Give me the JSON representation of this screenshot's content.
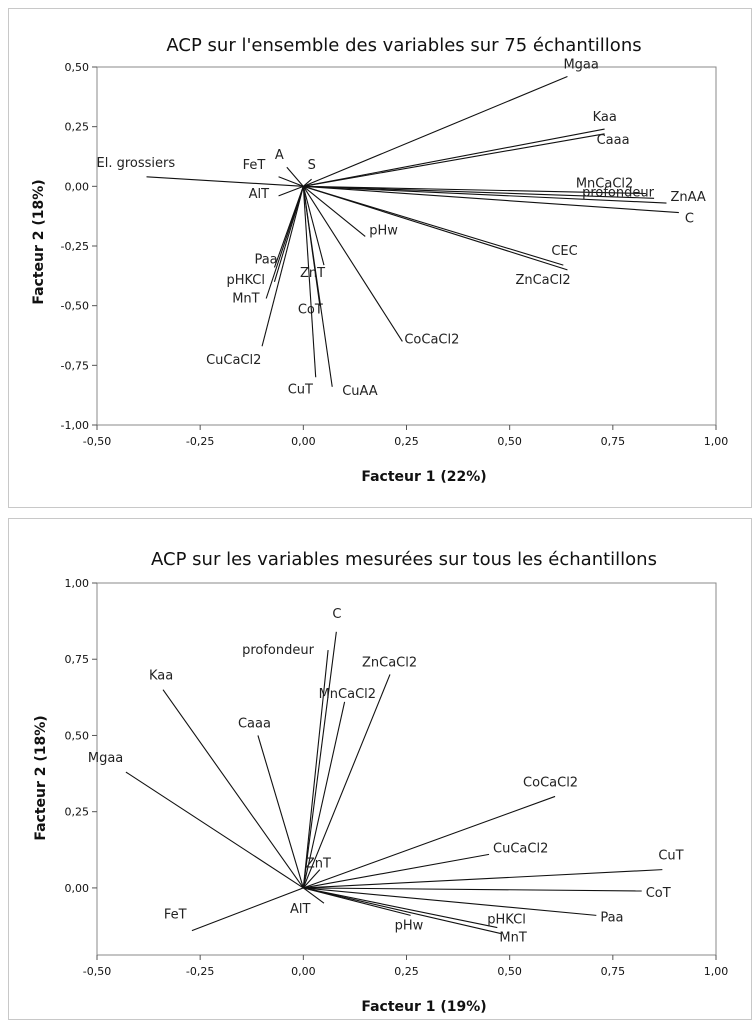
{
  "chart_data": [
    {
      "type": "biplot",
      "title": "ACP sur l'ensemble des variables sur 75 échantillons",
      "xlabel": "Facteur 1 (22%)",
      "ylabel": "Facteur 2 (18%)",
      "xlim": [
        -0.5,
        1.0
      ],
      "ylim": [
        -1.0,
        0.5
      ],
      "xticks": [
        "-0,50",
        "-0,25",
        "0,00",
        "0,25",
        "0,50",
        "0,75",
        "1,00"
      ],
      "yticks": [
        "0,50",
        "0,25",
        "0,00",
        "-0,25",
        "-0,50",
        "-0,75",
        "-1,00"
      ],
      "grid": false,
      "variables": [
        {
          "name": "Mgaa",
          "x": 0.64,
          "y": 0.46
        },
        {
          "name": "Kaa",
          "x": 0.73,
          "y": 0.24
        },
        {
          "name": "Caaa",
          "x": 0.73,
          "y": 0.22
        },
        {
          "name": "MnCaCl2",
          "x": 0.83,
          "y": -0.03
        },
        {
          "name": "profondeur",
          "x": 0.85,
          "y": -0.05
        },
        {
          "name": "ZnAA",
          "x": 0.88,
          "y": -0.07
        },
        {
          "name": "C",
          "x": 0.91,
          "y": -0.11
        },
        {
          "name": "CEC",
          "x": 0.63,
          "y": -0.33
        },
        {
          "name": "ZnCaCl2",
          "x": 0.64,
          "y": -0.35
        },
        {
          "name": "El. grossiers",
          "x": -0.38,
          "y": 0.04
        },
        {
          "name": "FeT",
          "x": -0.06,
          "y": 0.04
        },
        {
          "name": "A",
          "x": -0.04,
          "y": 0.08
        },
        {
          "name": "S",
          "x": 0.02,
          "y": 0.03
        },
        {
          "name": "AlT",
          "x": -0.06,
          "y": -0.04
        },
        {
          "name": "Paa",
          "x": -0.07,
          "y": -0.34
        },
        {
          "name": "pHKCl",
          "x": -0.07,
          "y": -0.4
        },
        {
          "name": "MnT",
          "x": -0.09,
          "y": -0.47
        },
        {
          "name": "CuCaCl2",
          "x": -0.1,
          "y": -0.67
        },
        {
          "name": "CoT",
          "x": 0.04,
          "y": -0.5
        },
        {
          "name": "ZnT",
          "x": 0.05,
          "y": -0.33
        },
        {
          "name": "pHw",
          "x": 0.15,
          "y": -0.21
        },
        {
          "name": "CoCaCl2",
          "x": 0.24,
          "y": -0.65
        },
        {
          "name": "CuT",
          "x": 0.03,
          "y": -0.8
        },
        {
          "name": "CuAA",
          "x": 0.07,
          "y": -0.84
        }
      ]
    },
    {
      "type": "biplot",
      "title": "ACP sur les variables mesurées sur tous les échantillons",
      "xlabel": "Facteur 1 (19%)",
      "ylabel": "Facteur 2 (18%)",
      "xlim": [
        -0.5,
        1.0
      ],
      "ylim": [
        -0.22,
        1.0
      ],
      "xticks": [
        "-0,50",
        "-0,25",
        "0,00",
        "0,25",
        "0,50",
        "0,75",
        "1,00"
      ],
      "yticks": [
        "1,00",
        "0,75",
        "0,50",
        "0,25",
        "0,00"
      ],
      "grid": false,
      "variables": [
        {
          "name": "C",
          "x": 0.08,
          "y": 0.84
        },
        {
          "name": "profondeur",
          "x": 0.06,
          "y": 0.78
        },
        {
          "name": "ZnCaCl2",
          "x": 0.21,
          "y": 0.7
        },
        {
          "name": "MnCaCl2",
          "x": 0.1,
          "y": 0.61
        },
        {
          "name": "Kaa",
          "x": -0.34,
          "y": 0.65
        },
        {
          "name": "Caaa",
          "x": -0.11,
          "y": 0.5
        },
        {
          "name": "Mgaa",
          "x": -0.43,
          "y": 0.38
        },
        {
          "name": "CoCaCl2",
          "x": 0.61,
          "y": 0.3
        },
        {
          "name": "CuCaCl2",
          "x": 0.45,
          "y": 0.11
        },
        {
          "name": "ZnT",
          "x": 0.04,
          "y": 0.06
        },
        {
          "name": "CuT",
          "x": 0.87,
          "y": 0.06
        },
        {
          "name": "CoT",
          "x": 0.82,
          "y": -0.01
        },
        {
          "name": "Paa",
          "x": 0.71,
          "y": -0.09
        },
        {
          "name": "pHKCl",
          "x": 0.47,
          "y": -0.13
        },
        {
          "name": "MnT",
          "x": 0.48,
          "y": -0.15
        },
        {
          "name": "pHw",
          "x": 0.26,
          "y": -0.09
        },
        {
          "name": "AlT",
          "x": 0.05,
          "y": -0.05
        },
        {
          "name": "FeT",
          "x": -0.27,
          "y": -0.14
        }
      ]
    }
  ]
}
